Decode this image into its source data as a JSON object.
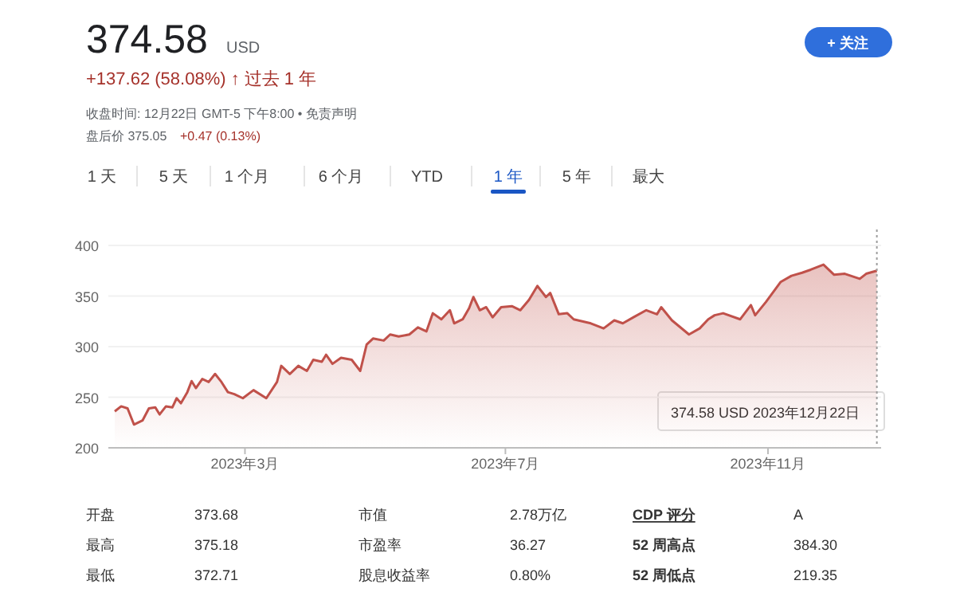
{
  "chart_data": {
    "type": "area",
    "title": "374.58",
    "annotations": [
      "USD",
      "+137.62 (58.08%) ↑ 过去 1 年",
      "收盘时间: 12月22日 GMT-5 下午8:00 • 免责声明",
      "盘后价 375.05",
      "+0.47 (0.13%)",
      "+ 关注",
      "1 天",
      "5 天",
      "1 个月",
      "6 个月",
      "YTD",
      "1 年",
      "5 年",
      "最大",
      "开盘",
      "373.68",
      "最高",
      "375.18",
      "最低",
      "372.71",
      "市值",
      "2.78万亿",
      "市盈率",
      "36.27",
      "股息收益率",
      "0.80%",
      "CDP 评分",
      "A",
      "52 周高点",
      "384.30",
      "52 周低点",
      "219.35",
      "374.58 USD  2023年12月22日"
    ],
    "x": [
      "2022-12-30",
      "2023-01-02",
      "2023-01-05",
      "2023-01-08",
      "2023-01-12",
      "2023-01-15",
      "2023-01-18",
      "2023-01-20",
      "2023-01-23",
      "2023-01-26",
      "2023-01-28",
      "2023-01-30",
      "2023-02-02",
      "2023-02-04",
      "2023-02-06",
      "2023-02-09",
      "2023-02-12",
      "2023-02-15",
      "2023-02-18",
      "2023-02-21",
      "2023-02-24",
      "2023-02-28",
      "2023-03-05",
      "2023-03-11",
      "2023-03-16",
      "2023-03-18",
      "2023-03-22",
      "2023-03-26",
      "2023-03-30",
      "2023-04-02",
      "2023-04-06",
      "2023-04-08",
      "2023-04-11",
      "2023-04-15",
      "2023-04-20",
      "2023-04-24",
      "2023-04-27",
      "2023-04-30",
      "2023-05-05",
      "2023-05-08",
      "2023-05-12",
      "2023-05-17",
      "2023-05-21",
      "2023-05-25",
      "2023-05-28",
      "2023-06-01",
      "2023-06-05",
      "2023-06-07",
      "2023-06-11",
      "2023-06-14",
      "2023-06-16",
      "2023-06-19",
      "2023-06-22",
      "2023-06-25",
      "2023-06-29",
      "2023-07-04",
      "2023-07-08",
      "2023-07-12",
      "2023-07-16",
      "2023-07-20",
      "2023-07-22",
      "2023-07-26",
      "2023-07-30",
      "2023-08-02",
      "2023-08-10",
      "2023-08-16",
      "2023-08-21",
      "2023-08-25",
      "2023-08-30",
      "2023-09-05",
      "2023-09-10",
      "2023-09-12",
      "2023-09-17",
      "2023-09-25",
      "2023-09-30",
      "2023-10-04",
      "2023-10-07",
      "2023-10-11",
      "2023-10-19",
      "2023-10-24",
      "2023-10-26",
      "2023-10-31",
      "2023-11-07",
      "2023-11-12",
      "2023-11-17",
      "2023-11-21",
      "2023-11-27",
      "2023-12-02",
      "2023-12-07",
      "2023-12-14",
      "2023-12-17",
      "2023-12-22"
    ],
    "series": [
      {
        "color": "#c0514a",
        "values": [
          236,
          241,
          239,
          223,
          227,
          239,
          240,
          233,
          241,
          240,
          249,
          244,
          255,
          266,
          259,
          268,
          265,
          273,
          265,
          255,
          253,
          249,
          257,
          249,
          265,
          281,
          273,
          281,
          276,
          287,
          285,
          292,
          283,
          289,
          287,
          276,
          302,
          308,
          306,
          312,
          310,
          312,
          319,
          315,
          333,
          327,
          336,
          323,
          327,
          338,
          349,
          336,
          339,
          329,
          339,
          340,
          336,
          346,
          360,
          349,
          353,
          332,
          333,
          327,
          323,
          318,
          326,
          323,
          329,
          336,
          332,
          339,
          326,
          312,
          318,
          327,
          331,
          333,
          327,
          341,
          331,
          344,
          364,
          370,
          373,
          376,
          381,
          371,
          372,
          367,
          372,
          375
        ]
      }
    ],
    "xlim": [
      "2022-12-27",
      "2023-12-24"
    ],
    "xticks": [
      {
        "value": "2023-03-01",
        "label": "2023年3月"
      },
      {
        "value": "2023-07-01",
        "label": "2023年7月"
      },
      {
        "value": "2023-11-01",
        "label": "2023年11月"
      }
    ],
    "ylim": [
      200,
      400
    ],
    "yticks": [
      200,
      250,
      300,
      350,
      400
    ],
    "grid": "y",
    "ref_lines": [
      {
        "axis": "x",
        "value": "2023-12-22",
        "line_style": "dotted",
        "color": "#9e9e9e"
      }
    ]
  }
}
